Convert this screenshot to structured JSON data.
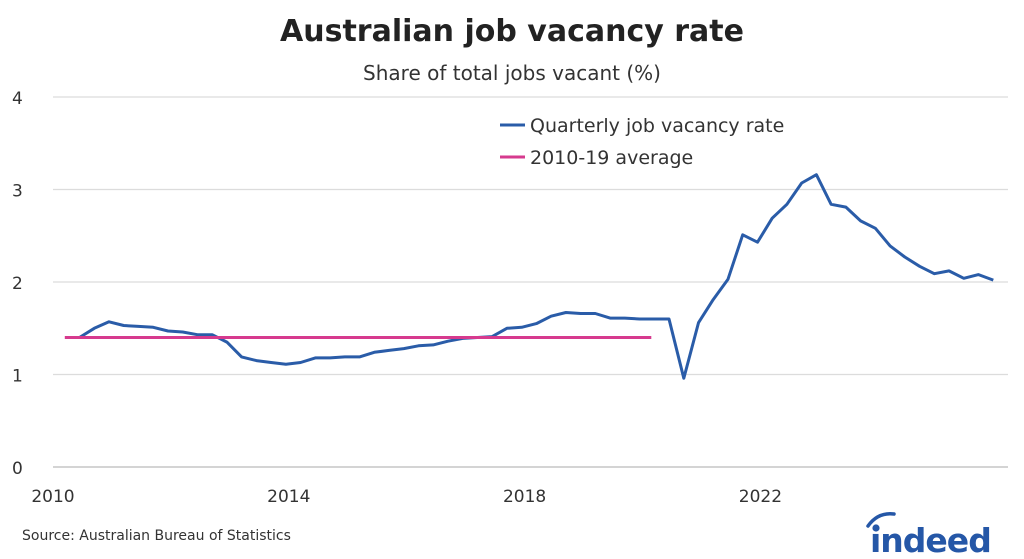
{
  "chart_data": {
    "type": "line",
    "title": "Australian job vacancy rate",
    "subtitle": "Share of total jobs vacant (%)",
    "xlabel": "",
    "ylabel": "",
    "xlim": [
      2010,
      2026.2
    ],
    "ylim": [
      0,
      4
    ],
    "x_ticks": [
      "2010",
      "2014",
      "2018",
      "2022"
    ],
    "x_tick_values": [
      2010,
      2014,
      2018,
      2022
    ],
    "y_ticks": [
      "0",
      "1",
      "2",
      "3",
      "4"
    ],
    "y_tick_values": [
      0,
      1,
      2,
      3,
      4
    ],
    "grid": "horizontal",
    "legend_position": "top-center",
    "series": [
      {
        "name": "Quarterly job vacancy rate",
        "color": "#2a5ca8",
        "x_start": 2010.45,
        "x_step": 0.25,
        "values": [
          1.4,
          1.5,
          1.57,
          1.53,
          1.52,
          1.51,
          1.47,
          1.46,
          1.43,
          1.43,
          1.35,
          1.19,
          1.15,
          1.13,
          1.11,
          1.13,
          1.18,
          1.18,
          1.19,
          1.19,
          1.24,
          1.26,
          1.28,
          1.31,
          1.32,
          1.36,
          1.39,
          1.4,
          1.41,
          1.5,
          1.51,
          1.55,
          1.63,
          1.67,
          1.66,
          1.66,
          1.61,
          1.61,
          1.6,
          1.6,
          1.6,
          0.96,
          1.56,
          1.81,
          2.03,
          2.51,
          2.43,
          2.69,
          2.84,
          3.07,
          3.16,
          2.84,
          2.81,
          2.66,
          2.58,
          2.39,
          2.27,
          2.17,
          2.09,
          2.12,
          2.04,
          2.08,
          2.02
        ]
      },
      {
        "name": "2010-19 average",
        "color": "#d63a8e",
        "x": [
          2010.2,
          2020.15
        ],
        "values": [
          1.4,
          1.4
        ]
      }
    ]
  },
  "source": "Source: Australian Bureau of Statistics",
  "logo": {
    "text": "indeed",
    "color": "#2557a7"
  }
}
